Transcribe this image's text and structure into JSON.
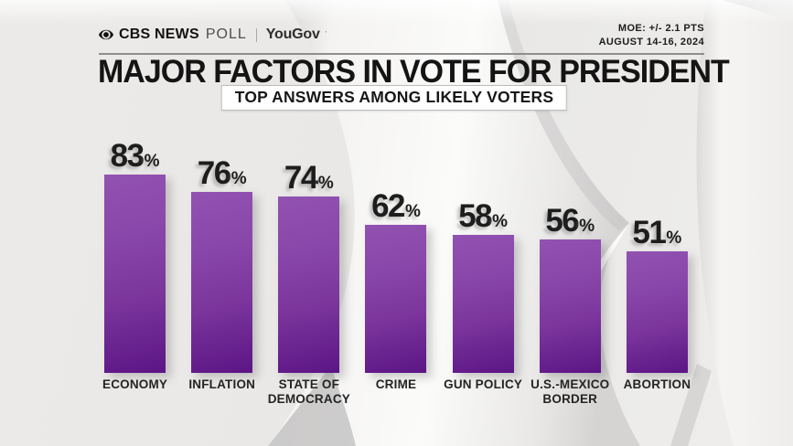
{
  "header": {
    "cbs": "CBS NEWS",
    "poll": "POLL",
    "partner": "YouGov",
    "moe_line1": "MOE: +/- 2.1 PTS",
    "moe_line2": "AUGUST 14-16, 2024"
  },
  "title": "MAJOR FACTORS IN VOTE FOR PRESIDENT",
  "subtitle": "TOP ANSWERS AMONG LIKELY VOTERS",
  "chart_data": {
    "type": "bar",
    "title": "MAJOR FACTORS IN VOTE FOR PRESIDENT",
    "subtitle": "TOP ANSWERS AMONG LIKELY VOTERS",
    "categories": [
      "ECONOMY",
      "INFLATION",
      "STATE OF\nDEMOCRACY",
      "CRIME",
      "GUN POLICY",
      "U.S.-MEXICO\nBORDER",
      "ABORTION"
    ],
    "values": [
      83,
      76,
      74,
      62,
      58,
      56,
      51
    ],
    "unit": "%",
    "ylim": [
      0,
      100
    ],
    "grid": false,
    "legend": "none",
    "value_labels_shown": true,
    "bar_color_top": "#8b49ab",
    "bar_color_bottom": "#5c1585"
  },
  "colors": {
    "background": "#eae9e7",
    "title_text": "#141414",
    "category_label_text": "#242424",
    "divider": "#8f8e8d"
  }
}
